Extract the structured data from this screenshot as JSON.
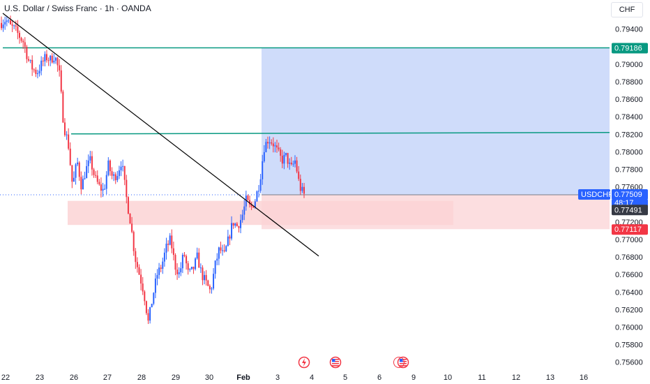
{
  "header": {
    "title": "U.S. Dollar / Swiss Franc · 1h · OANDA",
    "currency_button": "CHF"
  },
  "colors": {
    "up": "#2962ff",
    "down": "#f23645",
    "trendline": "#000000",
    "level_line": "#089981",
    "target_zone": "#cfdcfa",
    "stop_zone": "#fbd3d5",
    "demand_zone": "#fbd3d5",
    "current_price_tag": "#2962ff",
    "stop_tag": "#f23645",
    "target_tag": "#089981",
    "dark_tag": "#363a45"
  },
  "chart_data": {
    "type": "candlestick",
    "symbol": "USDCHF",
    "timeframe": "1h",
    "ylim": [
      0.7551,
      0.7962
    ],
    "y_ticks": [
      "0.79400",
      "0.79000",
      "0.78800",
      "0.78600",
      "0.78400",
      "0.78200",
      "0.78000",
      "0.77800",
      "0.77600",
      "0.77200",
      "0.77000",
      "0.76800",
      "0.76600",
      "0.76400",
      "0.76200",
      "0.76000",
      "0.75800",
      "0.75600"
    ],
    "x_ticks": [
      "22",
      "23",
      "26",
      "27",
      "28",
      "29",
      "30",
      "Feb",
      "3",
      "4",
      "5",
      "6",
      "9",
      "10",
      "11",
      "12",
      "13",
      "16"
    ],
    "price_tags": {
      "target": "0.79186",
      "symbol": "USDCHF",
      "current": "0.77509",
      "countdown": "48:17",
      "entry": "0.77491",
      "stop": "0.77117"
    },
    "levels": {
      "long_position_target": 0.79186,
      "long_position_entry": 0.77509,
      "long_position_stop": 0.77117,
      "upper_resistance_line": 0.7822
    },
    "zones": {
      "demand_zone": [
        0.77165,
        0.7744
      ]
    },
    "trendline": {
      "from": [
        0,
        0.7958
      ],
      "to": [
        1,
        0.7681
      ]
    },
    "events": [
      "lightning-event-icon",
      "us-flag-event-icon",
      "us-flag-event-icon-double"
    ],
    "anchors": [
      0.7947,
      0.7951,
      0.7943,
      0.794,
      0.7932,
      0.7925,
      0.7905,
      0.7895,
      0.789,
      0.79,
      0.7908,
      0.7905,
      0.791,
      0.789,
      0.783,
      0.781,
      0.776,
      0.779,
      0.776,
      0.778,
      0.779,
      0.777,
      0.776,
      0.7755,
      0.7785,
      0.777,
      0.7775,
      0.779,
      0.775,
      0.772,
      0.768,
      0.766,
      0.764,
      0.7605,
      0.7635,
      0.766,
      0.767,
      0.769,
      0.77,
      0.767,
      0.766,
      0.7685,
      0.766,
      0.7665,
      0.768,
      0.766,
      0.765,
      0.764,
      0.767,
      0.769,
      0.768,
      0.77,
      0.772,
      0.7715,
      0.7725,
      0.7745,
      0.7735,
      0.7745,
      0.7765,
      0.7805,
      0.7815,
      0.781,
      0.78,
      0.779,
      0.7795,
      0.778,
      0.779,
      0.776,
      0.7751
    ],
    "anchor_x_span": [
      0,
      0.468
    ]
  }
}
